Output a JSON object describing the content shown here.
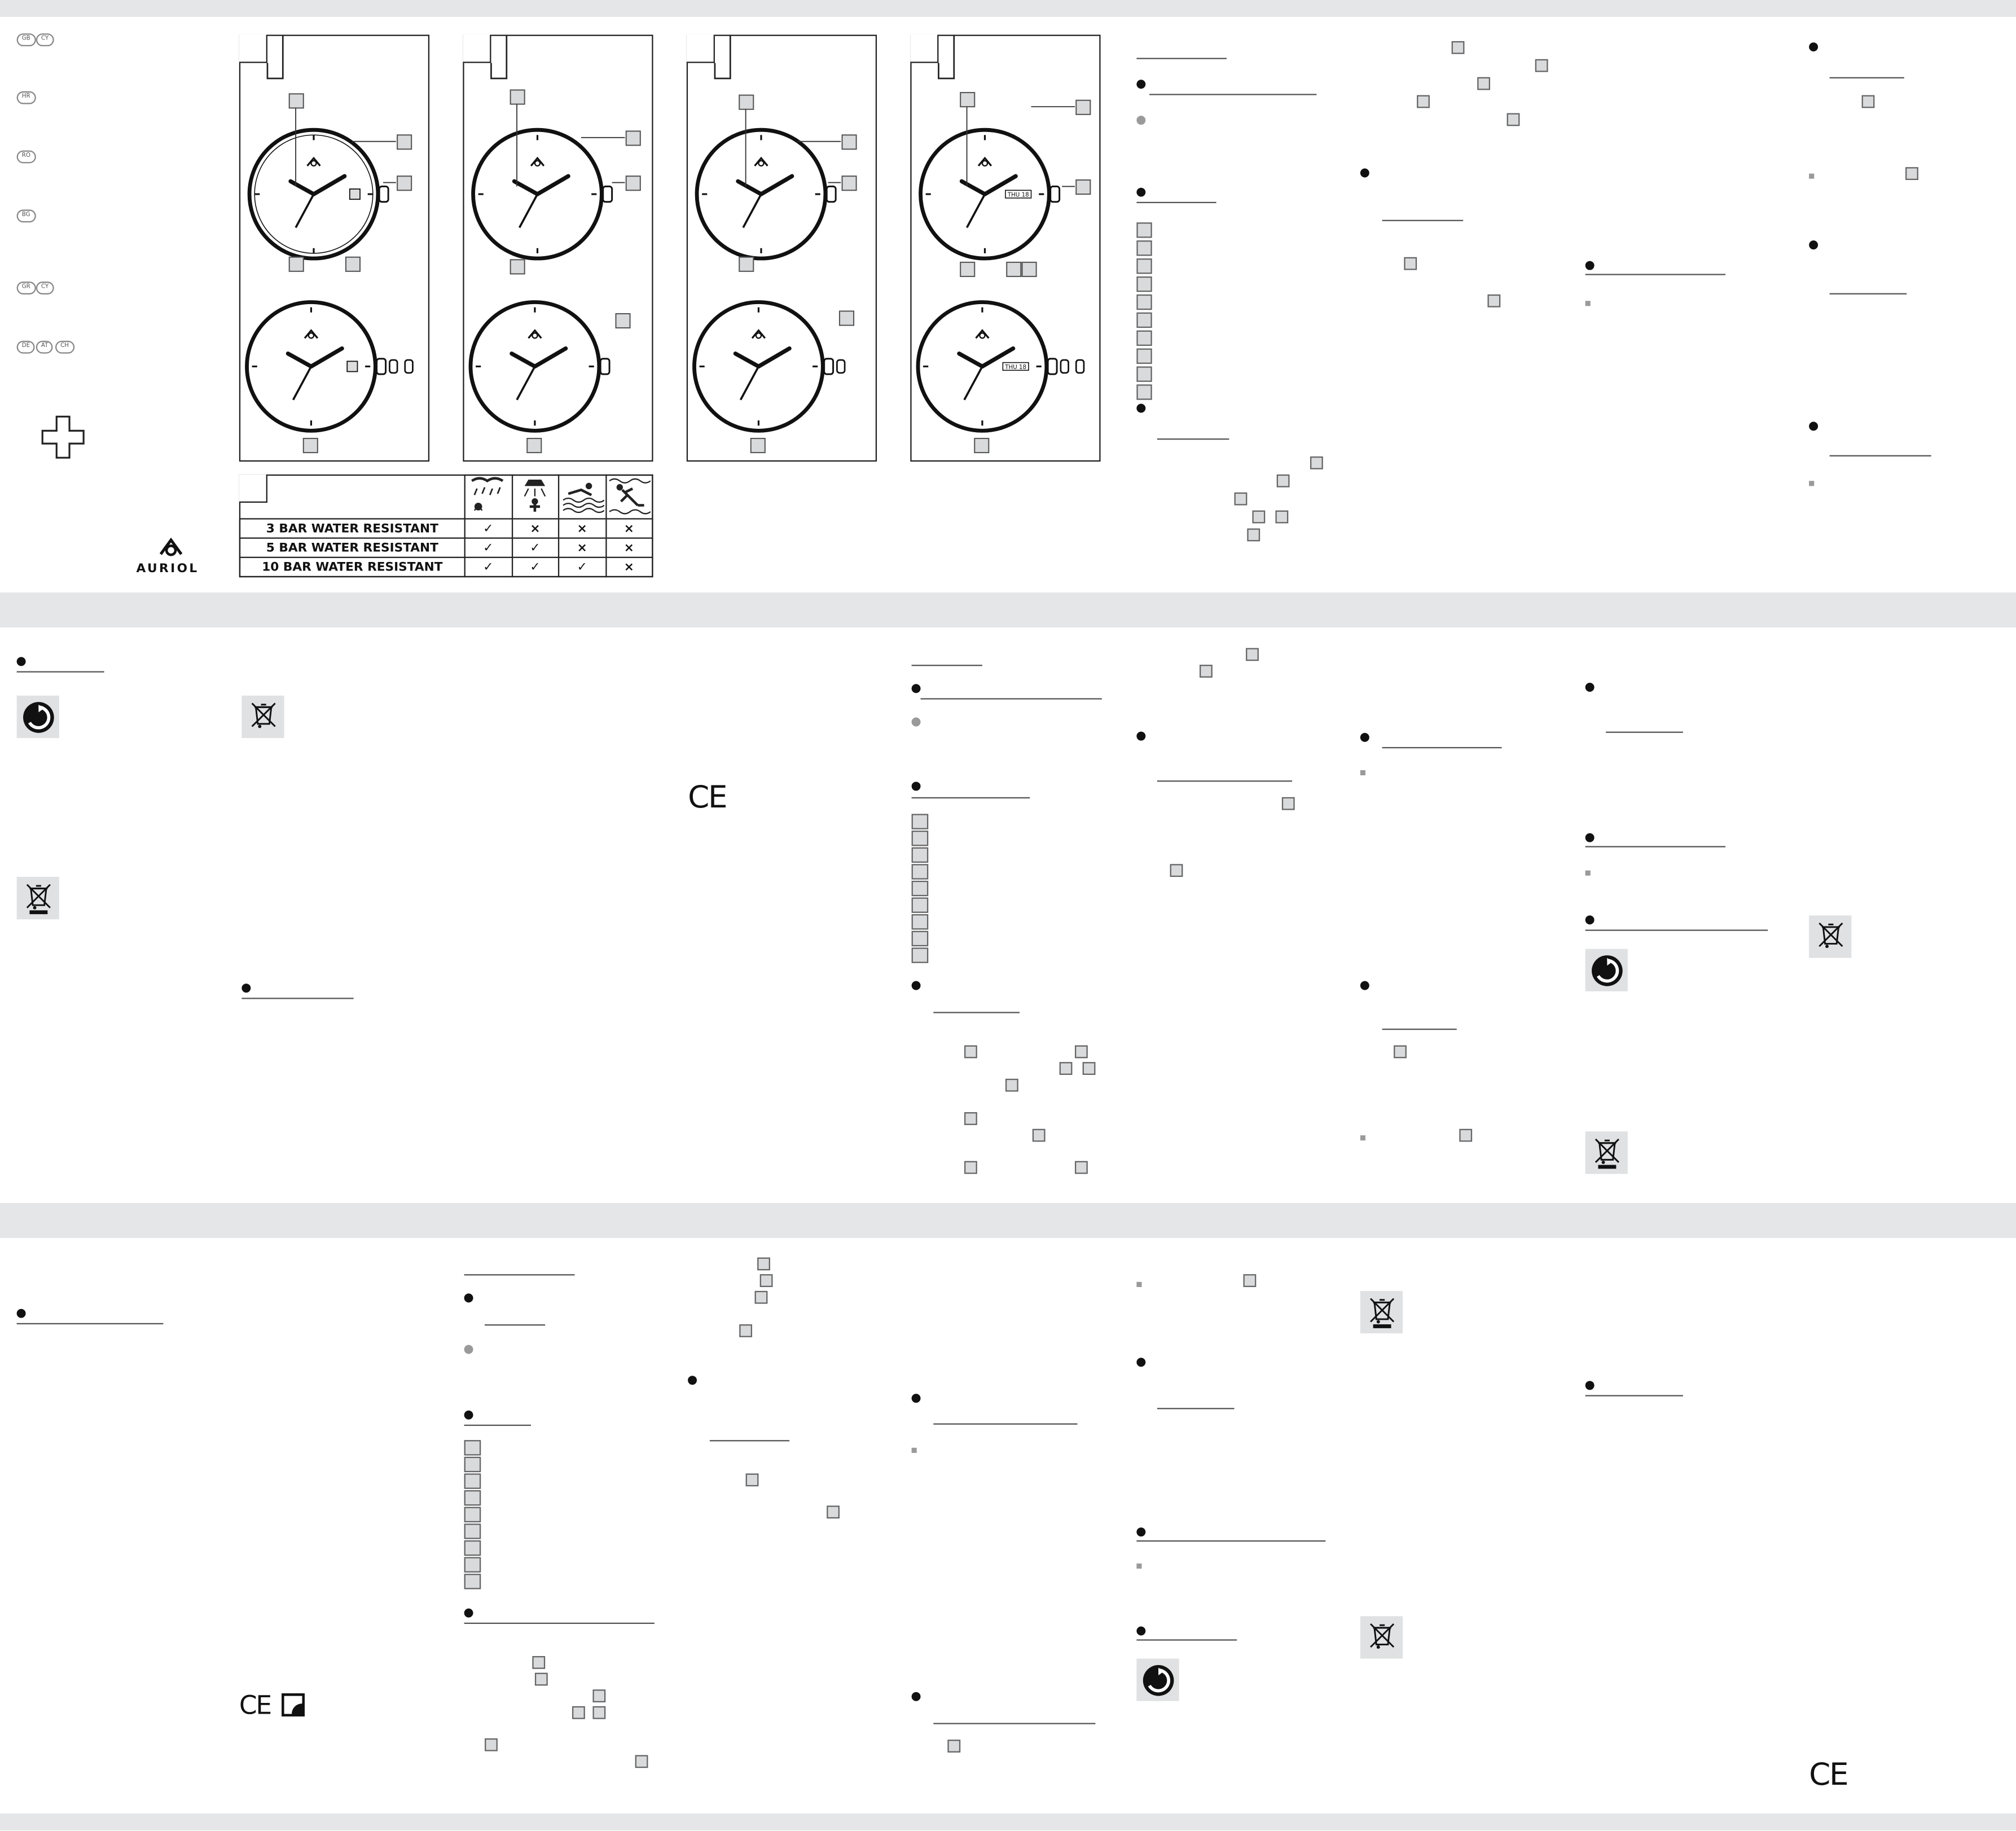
{
  "countries": [
    "GB",
    "CY",
    "HR",
    "RO",
    "BG",
    "GR",
    "CY",
    "DE",
    "AT",
    "CH"
  ],
  "brand": {
    "name": "AURIOL"
  },
  "panels": [
    {
      "date_label": ""
    },
    {
      "date_label": ""
    },
    {
      "date_label": ""
    },
    {
      "date_label": "THU 18"
    }
  ],
  "water_table": {
    "rows": [
      {
        "label": "3 BAR WATER RESISTANT",
        "marks": [
          "✓",
          "×",
          "×",
          "×"
        ]
      },
      {
        "label": "5 BAR WATER RESISTANT",
        "marks": [
          "✓",
          "✓",
          "×",
          "×"
        ]
      },
      {
        "label": "10 BAR WATER RESISTANT",
        "marks": [
          "✓",
          "✓",
          "✓",
          "×"
        ]
      }
    ],
    "activity_icons": [
      "rain-splash-icon",
      "shower-icon",
      "swimming-icon",
      "diving-icon"
    ]
  },
  "date_window_small": "18",
  "ce_mark": "CE",
  "colors": {
    "band": "#e5e6e8",
    "line": "#222222",
    "box": "#d9dadb"
  }
}
